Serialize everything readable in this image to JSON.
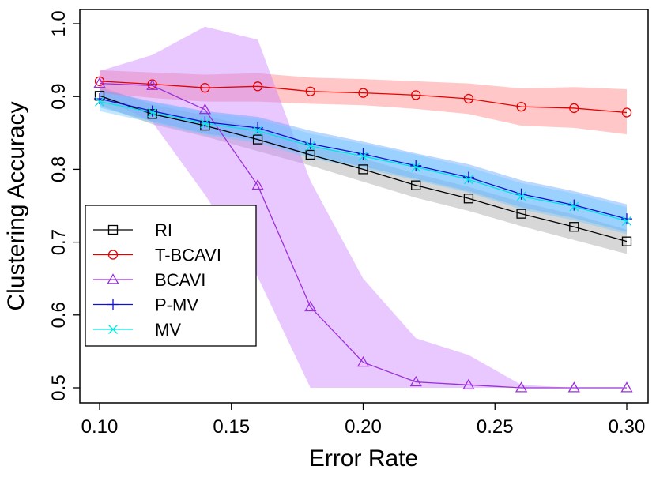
{
  "chart_data": {
    "type": "line",
    "title": "",
    "xlabel": "Error Rate",
    "ylabel": "Clustering Accuracy",
    "xlim": [
      0.1,
      0.3
    ],
    "ylim": [
      0.5,
      1.0
    ],
    "x": [
      0.1,
      0.12,
      0.14,
      0.16,
      0.18,
      0.2,
      0.22,
      0.24,
      0.26,
      0.28,
      0.3
    ],
    "xticks": [
      "0.10",
      "0.15",
      "0.20",
      "0.25",
      "0.30"
    ],
    "xtick_values": [
      0.1,
      0.15,
      0.2,
      0.25,
      0.3
    ],
    "yticks": [
      "0.5",
      "0.6",
      "0.7",
      "0.8",
      "0.9",
      "1.0"
    ],
    "ytick_values": [
      0.5,
      0.6,
      0.7,
      0.8,
      0.9,
      1.0
    ],
    "legend_position": "left",
    "grid": false,
    "series": [
      {
        "name": "RI",
        "marker": "square",
        "color": "#000000",
        "band_color": "#a0a0a0",
        "values": [
          0.901,
          0.876,
          0.86,
          0.841,
          0.82,
          0.8,
          0.778,
          0.76,
          0.739,
          0.721,
          0.701
        ],
        "lower": [
          0.888,
          0.862,
          0.845,
          0.825,
          0.805,
          0.783,
          0.761,
          0.743,
          0.722,
          0.703,
          0.684
        ],
        "upper": [
          0.914,
          0.889,
          0.874,
          0.856,
          0.834,
          0.815,
          0.794,
          0.776,
          0.755,
          0.738,
          0.717
        ]
      },
      {
        "name": "T-BCAVI",
        "marker": "circle",
        "color": "#e60000",
        "band_color": "#ff7a7a",
        "values": [
          0.921,
          0.917,
          0.912,
          0.914,
          0.907,
          0.905,
          0.902,
          0.897,
          0.886,
          0.884,
          0.878
        ],
        "lower": [
          0.905,
          0.898,
          0.893,
          0.893,
          0.89,
          0.888,
          0.883,
          0.876,
          0.86,
          0.857,
          0.848
        ],
        "upper": [
          0.936,
          0.933,
          0.93,
          0.932,
          0.926,
          0.924,
          0.921,
          0.918,
          0.911,
          0.913,
          0.91
        ]
      },
      {
        "name": "BCAVI",
        "marker": "triangle",
        "color": "#9a30d8",
        "band_color": "#c77dff",
        "values": [
          0.918,
          0.915,
          0.882,
          0.778,
          0.611,
          0.535,
          0.508,
          0.504,
          0.5,
          0.5,
          0.5
        ],
        "lower": [
          0.9,
          0.865,
          0.765,
          0.652,
          0.5,
          0.5,
          0.5,
          0.5,
          0.5,
          0.5,
          0.5
        ],
        "upper": [
          0.935,
          0.957,
          0.996,
          0.978,
          0.784,
          0.65,
          0.568,
          0.545,
          0.504,
          0.5,
          0.5
        ]
      },
      {
        "name": "P-MV",
        "marker": "plus",
        "color": "#1010d0",
        "band_color": "#5aa0ff",
        "values": [
          0.897,
          0.88,
          0.865,
          0.857,
          0.835,
          0.821,
          0.805,
          0.789,
          0.766,
          0.751,
          0.732
        ],
        "lower": [
          0.885,
          0.866,
          0.849,
          0.84,
          0.818,
          0.804,
          0.787,
          0.77,
          0.748,
          0.733,
          0.714
        ],
        "upper": [
          0.91,
          0.893,
          0.88,
          0.872,
          0.853,
          0.838,
          0.822,
          0.807,
          0.785,
          0.77,
          0.752
        ]
      },
      {
        "name": "MV",
        "marker": "x",
        "color": "#00e5e5",
        "band_color": "#6ec8ff",
        "values": [
          0.893,
          0.878,
          0.863,
          0.853,
          0.832,
          0.818,
          0.803,
          0.786,
          0.763,
          0.749,
          0.729
        ],
        "lower": [
          0.88,
          0.864,
          0.847,
          0.836,
          0.815,
          0.801,
          0.785,
          0.768,
          0.745,
          0.73,
          0.711
        ],
        "upper": [
          0.906,
          0.892,
          0.878,
          0.869,
          0.849,
          0.835,
          0.82,
          0.803,
          0.781,
          0.767,
          0.748
        ]
      }
    ]
  }
}
